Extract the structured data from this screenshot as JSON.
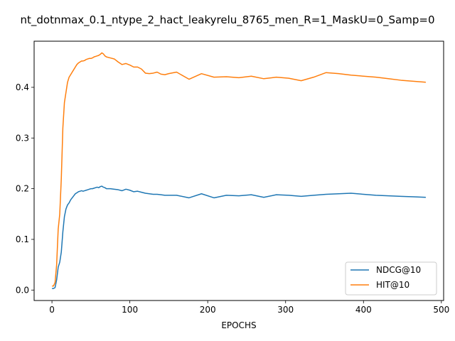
{
  "chart_data": {
    "type": "line",
    "title": "nt_dotnmax_0.1_ntype_2_hact_leakyrelu_8765_men_R=1_MaskU=0_Samp=0",
    "xlabel": "EPOCHS",
    "ylabel": "",
    "xlim": [
      -22.9,
      502.9
    ],
    "ylim": [
      -0.0206,
      0.491
    ],
    "xticks": [
      0,
      100,
      200,
      300,
      400,
      500
    ],
    "yticks": [
      0.0,
      0.1,
      0.2,
      0.3,
      0.4
    ],
    "xtick_labels": [
      "0",
      "100",
      "200",
      "300",
      "400",
      "500"
    ],
    "ytick_labels": [
      "0.0",
      "0.1",
      "0.2",
      "0.3",
      "0.4"
    ],
    "grid": false,
    "legend": {
      "placement": "lower-right"
    },
    "series": [
      {
        "name": "NDCG@10",
        "color": "#1f77b4",
        "x": [
          0,
          2,
          4,
          6,
          8,
          10,
          12,
          14,
          16,
          18,
          20,
          22,
          24,
          26,
          28,
          30,
          32,
          34,
          36,
          38,
          40,
          42,
          44,
          46,
          48,
          50,
          52,
          54,
          56,
          58,
          60,
          62,
          64,
          66,
          68,
          70,
          75,
          80,
          85,
          90,
          95,
          100,
          105,
          110,
          115,
          120,
          125,
          130,
          135,
          140,
          145,
          150,
          160,
          176,
          192,
          208,
          224,
          240,
          256,
          272,
          288,
          304,
          320,
          336,
          352,
          368,
          384,
          400,
          416,
          432,
          448,
          464,
          480
        ],
        "y": [
          0.003,
          0.003,
          0.005,
          0.02,
          0.045,
          0.055,
          0.075,
          0.115,
          0.145,
          0.16,
          0.168,
          0.172,
          0.178,
          0.182,
          0.186,
          0.19,
          0.192,
          0.194,
          0.195,
          0.196,
          0.195,
          0.196,
          0.197,
          0.198,
          0.199,
          0.2,
          0.2,
          0.201,
          0.202,
          0.203,
          0.202,
          0.204,
          0.205,
          0.203,
          0.202,
          0.2,
          0.2,
          0.199,
          0.198,
          0.196,
          0.199,
          0.197,
          0.194,
          0.195,
          0.193,
          0.191,
          0.19,
          0.189,
          0.189,
          0.188,
          0.187,
          0.187,
          0.187,
          0.182,
          0.19,
          0.182,
          0.187,
          0.186,
          0.188,
          0.183,
          0.188,
          0.187,
          0.185,
          0.187,
          0.189,
          0.19,
          0.191,
          0.189,
          0.187,
          0.186,
          0.185,
          0.184,
          0.183
        ]
      },
      {
        "name": "HIT@10",
        "color": "#ff7f0e",
        "x": [
          0,
          2,
          4,
          6,
          8,
          10,
          12,
          14,
          16,
          18,
          20,
          22,
          24,
          26,
          28,
          30,
          32,
          34,
          36,
          38,
          40,
          42,
          44,
          46,
          48,
          50,
          52,
          54,
          56,
          58,
          60,
          62,
          64,
          66,
          68,
          70,
          75,
          80,
          85,
          90,
          95,
          100,
          105,
          110,
          115,
          120,
          125,
          130,
          135,
          140,
          145,
          150,
          160,
          176,
          192,
          208,
          224,
          240,
          256,
          272,
          288,
          304,
          320,
          336,
          352,
          368,
          384,
          400,
          416,
          432,
          448,
          464,
          480
        ],
        "y": [
          0.008,
          0.008,
          0.015,
          0.05,
          0.12,
          0.15,
          0.22,
          0.32,
          0.37,
          0.39,
          0.41,
          0.42,
          0.425,
          0.43,
          0.435,
          0.44,
          0.445,
          0.448,
          0.45,
          0.452,
          0.452,
          0.453,
          0.455,
          0.456,
          0.457,
          0.457,
          0.458,
          0.46,
          0.461,
          0.462,
          0.463,
          0.465,
          0.468,
          0.466,
          0.462,
          0.46,
          0.458,
          0.456,
          0.45,
          0.445,
          0.447,
          0.444,
          0.44,
          0.44,
          0.436,
          0.428,
          0.427,
          0.428,
          0.43,
          0.426,
          0.425,
          0.427,
          0.43,
          0.416,
          0.427,
          0.42,
          0.421,
          0.419,
          0.422,
          0.417,
          0.42,
          0.418,
          0.413,
          0.42,
          0.429,
          0.427,
          0.424,
          0.422,
          0.42,
          0.417,
          0.414,
          0.412,
          0.41
        ]
      }
    ]
  }
}
